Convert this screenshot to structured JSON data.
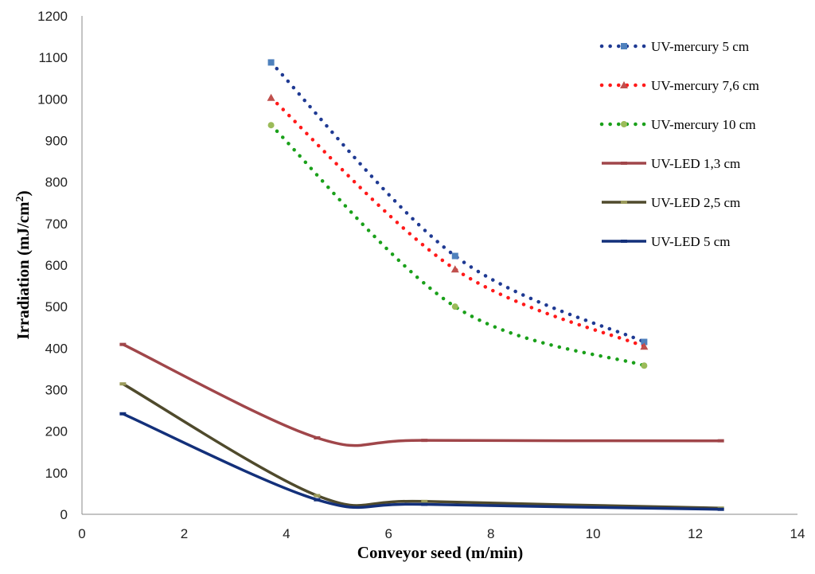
{
  "chart_data": {
    "type": "line",
    "title": "",
    "xlabel": "Conveyor seed (m/min)",
    "ylabel_base": "Irradiation  (mJ/cm",
    "ylabel_sup": "2",
    "ylabel_end": ")",
    "xlim": [
      0,
      14
    ],
    "ylim": [
      0,
      1200
    ],
    "xticks": [
      "0",
      "2",
      "4",
      "6",
      "8",
      "10",
      "12",
      "14"
    ],
    "yticks": [
      "0",
      "100",
      "200",
      "300",
      "400",
      "500",
      "600",
      "700",
      "800",
      "900",
      "1000",
      "1100",
      "1200"
    ],
    "grid": false,
    "legend_position": "top-right",
    "series": [
      {
        "name": "UV-mercury 5 cm",
        "style": "dotted",
        "marker": "square",
        "color": "#1f3a93",
        "marker_color": "#4f81bd",
        "x": [
          3.7,
          7.3,
          11.0
        ],
        "y": [
          1088,
          622,
          415
        ]
      },
      {
        "name": "UV-mercury 7,6 cm",
        "style": "dotted",
        "marker": "triangle",
        "color": "#ff1a1a",
        "marker_color": "#c0504d",
        "x": [
          3.7,
          7.3,
          11.0
        ],
        "y": [
          1003,
          590,
          404
        ]
      },
      {
        "name": "UV-mercury 10 cm",
        "style": "dotted",
        "marker": "circle",
        "color": "#1aa01a",
        "marker_color": "#9bbb59",
        "x": [
          3.7,
          7.3,
          11.0
        ],
        "y": [
          937,
          500,
          358
        ]
      },
      {
        "name": "UV-LED 1,3 cm",
        "style": "solid",
        "marker": "dash",
        "color": "#a0464a",
        "marker_color": "#a0464a",
        "x": [
          0.8,
          4.6,
          6.7,
          12.5
        ],
        "y": [
          409,
          184,
          178,
          177
        ]
      },
      {
        "name": "UV-LED 2,5 cm",
        "style": "solid",
        "marker": "dash",
        "color": "#4f4a2c",
        "marker_color": "#9a9a5a",
        "x": [
          0.8,
          4.6,
          6.7,
          12.5
        ],
        "y": [
          314,
          45,
          31,
          15
        ]
      },
      {
        "name": "UV-LED 5 cm",
        "style": "solid",
        "marker": "dash",
        "color": "#13307a",
        "marker_color": "#13307a",
        "x": [
          0.8,
          4.6,
          6.7,
          12.5
        ],
        "y": [
          242,
          35,
          24,
          12
        ]
      }
    ]
  }
}
